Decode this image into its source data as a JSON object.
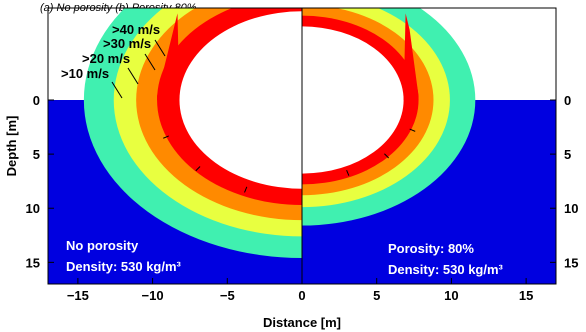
{
  "caption": "(a)     No porosity                (b)    Porosity 80%",
  "chart_data": {
    "type": "heatmap",
    "xlabel": "Distance [m]",
    "ylabel": "Depth [m]",
    "xlim": [
      -17,
      17
    ],
    "ylim": [
      17,
      -8.5
    ],
    "x_ticks": [
      -15,
      -10,
      -5,
      0,
      5,
      10,
      15
    ],
    "y_ticks": [
      0,
      5,
      10,
      15
    ],
    "speed_classes": [
      {
        "label": ">40 m/s",
        "color": "#ff0000"
      },
      {
        "label": ">30 m/s",
        "color": "#ff8a00"
      },
      {
        "label": ">20 m/s",
        "color": "#e8ff40"
      },
      {
        "label": ">10 m/s",
        "color": "#40f0b0"
      }
    ],
    "background_color": "#0000e0",
    "panels": [
      {
        "side": "left",
        "annotation_lines": [
          "No porosity",
          "Density: 530 kg/m³"
        ],
        "crater_radius": 8.2,
        "band_outer_radii": [
          9.7,
          11.1,
          12.6,
          14.6
        ]
      },
      {
        "side": "right",
        "annotation_lines": [
          "Porosity: 80%",
          "Density: 530 kg/m³"
        ],
        "crater_radius": 6.8,
        "band_outer_radii": [
          7.8,
          8.8,
          9.9,
          11.6
        ]
      }
    ]
  }
}
